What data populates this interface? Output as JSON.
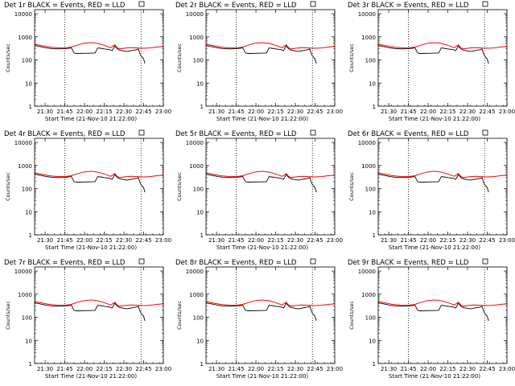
{
  "chart_data": [
    {
      "title": "Det 1r BLACK = Events, RED = LLD",
      "ylabel": "Counts/sec",
      "xlabel": "Start Time (21-Nov-10 21:22:00)"
    },
    {
      "title": "Det 2r BLACK = Events, RED = LLD",
      "ylabel": "Counts/sec",
      "xlabel": "Start Time (21-Nov-10 21:22:00)"
    },
    {
      "title": "Det 3r BLACK = Events, RED = LLD",
      "ylabel": "Counts/sec",
      "xlabel": "Start Time (21-Nov-10 21:22:00)"
    },
    {
      "title": "Det 4r BLACK = Events, RED = LLD",
      "ylabel": "Counts/sec",
      "xlabel": "Start Time (21-Nov-10 21:22:00)"
    },
    {
      "title": "Det 5r BLACK = Events, RED = LLD",
      "ylabel": "Counts/sec",
      "xlabel": "Start Time (21-Nov-10 21:22:00)"
    },
    {
      "title": "Det 6r BLACK = Events, RED = LLD",
      "ylabel": "Counts/sec",
      "xlabel": "Start Time (21-Nov-10 21:22:00)"
    },
    {
      "title": "Det 7r BLACK = Events, RED = LLD",
      "ylabel": "Counts/sec",
      "xlabel": "Start Time (21-Nov-10 21:22:00)"
    },
    {
      "title": "Det 8r BLACK = Events, RED = LLD",
      "ylabel": "Counts/sec",
      "xlabel": "Start Time (21-Nov-10 21:22:00)"
    },
    {
      "title": "Det 9r BLACK = Events, RED = LLD",
      "ylabel": "Counts/sec",
      "xlabel": "Start Time (21-Nov-10 21:22:00)"
    }
  ],
  "shared": {
    "type": "line",
    "yscale": "log",
    "ylim": [
      1,
      15000
    ],
    "xlim": [
      "21:22",
      "23:00"
    ],
    "x_tick_labels": [
      "21:30",
      "21:45",
      "22:00",
      "22:15",
      "22:30",
      "22:45",
      "23:00"
    ],
    "y_tick_labels": [
      "1",
      "10",
      "100",
      "1000",
      "10000"
    ],
    "vertical_dotted_lines": [
      "21:45",
      "22:43"
    ],
    "colors": {
      "events": "#000000",
      "lld": "#ff0000"
    },
    "series": [
      {
        "color": "events",
        "x": [
          "21:22",
          "21:27",
          "21:31",
          "21:35",
          "21:40",
          "21:45",
          "21:48",
          "21:50",
          "21:52",
          "21:54",
          "22:03",
          "22:08",
          "22:10",
          "22:12",
          "22:15",
          "22:19",
          "22:21",
          "22:23",
          "22:25",
          "22:27",
          "22:29",
          "22:32",
          "22:37",
          "22:40",
          "22:41",
          "22:42",
          "22:43",
          "22:44",
          "22:45",
          "22:46"
        ],
        "y": [
          420,
          370,
          330,
          310,
          300,
          310,
          320,
          330,
          200,
          190,
          195,
          200,
          330,
          320,
          300,
          280,
          250,
          400,
          300,
          260,
          250,
          230,
          260,
          280,
          300,
          200,
          150,
          130,
          110,
          70
        ]
      },
      {
        "color": "lld",
        "x": [
          "21:22",
          "21:27",
          "21:33",
          "21:40",
          "21:45",
          "21:50",
          "21:55",
          "22:00",
          "22:05",
          "22:10",
          "22:15",
          "22:20",
          "22:23",
          "22:25",
          "22:27",
          "22:30",
          "22:35",
          "22:40",
          "22:45",
          "22:50",
          "22:55",
          "23:00"
        ],
        "y": [
          480,
          420,
          360,
          330,
          330,
          360,
          450,
          530,
          560,
          520,
          430,
          340,
          450,
          330,
          300,
          320,
          340,
          330,
          320,
          330,
          360,
          380
        ]
      }
    ]
  }
}
